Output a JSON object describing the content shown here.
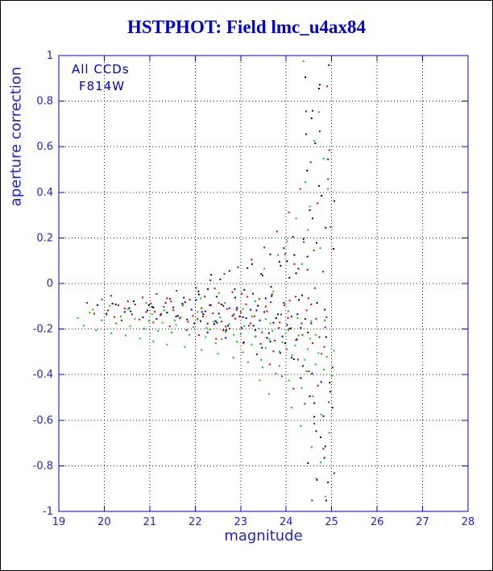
{
  "page_title": "HSTPHOT: Field lmc_u4ax84",
  "annotations": {
    "line1": "All CCDs",
    "line2": "F814W"
  },
  "colors": {
    "title": "#0000cc",
    "axis": "#0000cc",
    "grid": "#0000cc",
    "axis_text": "#2222cc"
  },
  "chart_data": {
    "type": "scatter",
    "title": "HSTPHOT: Field lmc_u4ax84",
    "xlabel": "magnitude",
    "ylabel": "aperture correction",
    "xlim": [
      19,
      28
    ],
    "ylim": [
      -1,
      1
    ],
    "x_ticks": [
      19,
      20,
      21,
      22,
      23,
      24,
      25,
      26,
      27,
      28
    ],
    "x_tick_labels": [
      "19",
      "20",
      "21",
      "22",
      "23",
      "24",
      "25",
      "26",
      "27",
      "28"
    ],
    "y_ticks": [
      1,
      0.8,
      0.6,
      0.4,
      0.2,
      0,
      -0.2,
      -0.4,
      -0.6,
      -0.8,
      -1
    ],
    "y_tick_labels": [
      "1",
      "0.8",
      "0.6",
      "0.4",
      "0.2",
      "0",
      "-0.2",
      "-0.4",
      "-0.6",
      "-0.8",
      "-1"
    ],
    "grid": "dotted",
    "legend": "none",
    "annotations": [
      "All CCDs",
      "F814W"
    ],
    "series": [
      {
        "name": "ccd-black",
        "color": "#000000",
        "points": [
          20.18,
          -0.088,
          20.58,
          -0.122,
          20.98,
          -0.095,
          21.38,
          -0.128,
          21.78,
          -0.082,
          22.18,
          -0.135,
          22.58,
          -0.092,
          22.98,
          -0.145,
          23.38,
          -0.098,
          23.78,
          -0.152,
          22.08,
          -0.048,
          22.48,
          -0.172,
          22.88,
          -0.062,
          23.28,
          -0.185,
          23.68,
          -0.055,
          24.08,
          -0.198,
          24.28,
          -0.072,
          24.48,
          -0.215,
          24.68,
          -0.085,
          24.88,
          -0.235,
          23.48,
          0.035,
          23.88,
          0.078,
          24.18,
          0.125,
          24.38,
          0.195,
          24.58,
          0.285,
          24.78,
          0.385,
          24.46,
          0.495,
          24.64,
          0.615,
          24.56,
          0.725,
          24.72,
          0.855,
          24.12,
          -0.325,
          24.32,
          -0.415,
          24.52,
          -0.495,
          24.62,
          -0.585,
          24.76,
          -0.675,
          24.84,
          -0.765,
          24.92,
          -0.872,
          24.42,
          0.905,
          24.96,
          -0.435,
          25.04,
          0.152,
          21.08,
          -0.105,
          21.58,
          -0.145,
          22.28,
          -0.025,
          23.08,
          -0.028,
          23.58,
          -0.238,
          23.98,
          -0.262,
          22.68,
          -0.205,
          21.98,
          -0.175,
          24.22,
          0.045,
          24.02,
          0.098
        ]
      },
      {
        "name": "ccd-red",
        "color": "#cc0000",
        "points": [
          19.62,
          -0.085,
          19.78,
          -0.132,
          19.95,
          -0.07,
          20.08,
          -0.118,
          20.15,
          -0.054,
          20.22,
          -0.147,
          20.31,
          -0.095,
          20.38,
          -0.162,
          20.45,
          -0.11,
          20.52,
          -0.078,
          20.61,
          -0.135,
          20.68,
          -0.092,
          20.77,
          -0.158,
          20.84,
          -0.061,
          20.92,
          -0.125,
          21.02,
          -0.088,
          21.08,
          -0.171,
          21.15,
          -0.046,
          21.23,
          -0.139,
          21.31,
          -0.102,
          21.38,
          -0.065,
          21.44,
          -0.188,
          21.52,
          -0.117,
          21.59,
          -0.032,
          21.66,
          -0.153,
          21.73,
          -0.096,
          21.81,
          -0.205,
          21.88,
          -0.071,
          21.95,
          -0.142,
          22.02,
          -0.019,
          22.08,
          -0.226,
          22.14,
          -0.108,
          22.21,
          -0.057,
          22.27,
          -0.176,
          22.33,
          0.014,
          22.39,
          -0.131,
          22.46,
          -0.243,
          22.52,
          -0.085,
          22.58,
          -0.167,
          22.64,
          0.042,
          22.7,
          -0.112,
          22.76,
          -0.198,
          22.82,
          -0.038,
          22.88,
          -0.154,
          22.94,
          0.071,
          23.0,
          -0.125,
          23.06,
          -0.262,
          23.12,
          -0.091,
          23.18,
          -0.185,
          23.24,
          0.105,
          23.3,
          -0.144,
          23.36,
          -0.311,
          23.41,
          -0.068,
          23.47,
          -0.214,
          23.52,
          0.158,
          23.58,
          -0.122,
          23.64,
          -0.355,
          23.69,
          -0.047,
          23.75,
          -0.251,
          23.8,
          0.228,
          23.86,
          -0.171,
          23.91,
          -0.408,
          23.96,
          -0.095,
          24.01,
          -0.288,
          24.06,
          0.312,
          24.11,
          -0.196,
          24.16,
          -0.462,
          24.21,
          -0.058,
          24.26,
          -0.334,
          24.31,
          0.415,
          24.36,
          -0.225,
          24.41,
          -0.528,
          24.45,
          -0.118,
          24.5,
          -0.385,
          24.54,
          0.532,
          24.58,
          -0.262,
          24.62,
          -0.615,
          24.66,
          -0.155,
          24.7,
          -0.448,
          24.74,
          0.668,
          24.78,
          -0.308,
          24.82,
          -0.725,
          24.86,
          -0.192,
          24.9,
          0.865,
          24.94,
          -0.521,
          24.98,
          0.248,
          25.02,
          -0.368,
          25.06,
          -0.832,
          21.11,
          -0.124,
          21.47,
          -0.079,
          21.84,
          -0.168,
          22.17,
          -0.145,
          22.43,
          -0.022,
          22.67,
          -0.189,
          22.91,
          -0.116,
          23.15,
          -0.058,
          23.33,
          -0.232,
          23.55,
          -0.101,
          23.72,
          -0.298,
          23.89,
          -0.136,
          24.08,
          -0.075,
          24.24,
          -0.245,
          24.39,
          0.182,
          24.55,
          -0.092,
          24.69,
          0.352,
          24.84,
          -0.278,
          24.92,
          0.458,
          24.47,
          0.06,
          24.63,
          -0.02,
          23.98,
          0.13,
          22.05,
          -0.155,
          22.35,
          -0.095,
          22.62,
          -0.205,
          22.85,
          -0.135,
          23.02,
          -0.045,
          23.22,
          -0.175,
          23.44,
          -0.265,
          23.66,
          -0.082,
          23.84,
          -0.195,
          24.04,
          -0.152,
          24.18,
          0.085,
          24.34,
          -0.175,
          24.49,
          -0.065,
          24.61,
          0.145,
          24.73,
          -0.235,
          24.81,
          0.052,
          24.89,
          -0.148,
          24.95,
          0.585,
          24.44,
          0.755,
          24.57,
          -0.952
        ]
      },
      {
        "name": "ccd-green",
        "color": "#00cc00",
        "points": [
          19.42,
          -0.152,
          19.55,
          -0.185,
          19.68,
          -0.128,
          19.82,
          -0.205,
          19.94,
          -0.162,
          20.05,
          -0.138,
          20.15,
          -0.218,
          20.26,
          -0.175,
          20.36,
          -0.145,
          20.47,
          -0.228,
          20.57,
          -0.188,
          20.67,
          -0.155,
          20.78,
          -0.242,
          20.88,
          -0.198,
          20.98,
          -0.165,
          21.08,
          -0.255,
          21.18,
          -0.208,
          21.28,
          -0.172,
          21.38,
          -0.268,
          21.48,
          -0.215,
          21.58,
          -0.182,
          21.68,
          -0.148,
          21.77,
          -0.278,
          21.87,
          -0.225,
          21.96,
          -0.192,
          22.05,
          -0.158,
          22.14,
          -0.292,
          22.23,
          -0.235,
          22.32,
          -0.202,
          22.41,
          -0.168,
          22.5,
          -0.308,
          22.58,
          -0.245,
          22.67,
          -0.212,
          22.75,
          -0.178,
          22.84,
          -0.325,
          22.92,
          -0.255,
          23.0,
          -0.222,
          23.08,
          -0.188,
          23.16,
          -0.345,
          23.24,
          -0.268,
          23.32,
          -0.232,
          23.4,
          -0.198,
          23.48,
          -0.368,
          23.55,
          -0.282,
          23.63,
          -0.245,
          23.7,
          -0.208,
          23.78,
          -0.395,
          23.85,
          -0.298,
          23.92,
          -0.258,
          23.99,
          -0.218,
          24.06,
          -0.425,
          24.13,
          -0.315,
          24.2,
          -0.272,
          24.27,
          -0.228,
          24.34,
          -0.458,
          24.41,
          -0.335,
          24.47,
          -0.288,
          24.53,
          -0.242,
          24.59,
          -0.495,
          24.65,
          -0.355,
          24.71,
          -0.305,
          24.77,
          -0.575,
          24.83,
          -0.378,
          24.89,
          -0.322,
          24.95,
          -0.655,
          25.01,
          -0.405,
          20.12,
          -0.098,
          20.52,
          -0.112,
          20.92,
          -0.085,
          21.32,
          -0.118,
          21.72,
          -0.095,
          22.12,
          -0.065,
          22.52,
          -0.042,
          22.92,
          -0.105,
          23.32,
          -0.078,
          23.72,
          -0.035,
          23.52,
          0.065,
          23.82,
          0.125,
          24.02,
          0.185,
          24.22,
          0.285,
          24.42,
          0.445,
          24.52,
          0.338,
          24.62,
          0.625,
          24.72,
          0.752,
          24.38,
          0.975,
          24.82,
          0.548,
          24.12,
          -0.545,
          24.32,
          -0.625,
          24.56,
          -0.718,
          24.76,
          -0.785,
          24.66,
          -0.855,
          24.86,
          -0.935,
          23.62,
          -0.485,
          23.42,
          -0.425,
          24.92,
          0.415,
          24.48,
          0.235,
          21.05,
          -0.135,
          21.55,
          -0.162,
          22.05,
          -0.125,
          22.55,
          -0.148,
          23.05,
          -0.112,
          23.55,
          -0.155,
          24.05,
          -0.122,
          24.55,
          -0.165,
          25.05,
          -0.295,
          19.75,
          -0.115,
          22.25,
          -0.195,
          22.45,
          -0.262,
          22.65,
          -0.085,
          22.85,
          -0.225,
          23.05,
          -0.302,
          23.25,
          -0.145,
          23.45,
          -0.335,
          23.65,
          -0.175,
          23.85,
          -0.362,
          24.05,
          -0.205,
          24.25,
          -0.152,
          24.45,
          -0.385,
          24.65,
          -0.225,
          24.85,
          -0.162,
          24.35,
          0.085,
          24.75,
          0.155
        ]
      },
      {
        "name": "ccd-blue",
        "color": "#000099",
        "points": [
          21.52,
          -0.105,
          21.62,
          -0.142,
          21.72,
          -0.088,
          21.82,
          -0.158,
          21.92,
          -0.115,
          22.02,
          -0.072,
          22.12,
          -0.165,
          22.22,
          -0.122,
          22.32,
          -0.095,
          22.42,
          -0.178,
          22.52,
          -0.132,
          22.62,
          -0.098,
          22.72,
          -0.185,
          22.82,
          -0.142,
          22.92,
          -0.108,
          23.02,
          -0.195,
          23.12,
          -0.152,
          23.22,
          -0.115,
          23.32,
          -0.205,
          23.42,
          -0.162,
          23.52,
          -0.125,
          23.62,
          -0.218,
          23.72,
          -0.172,
          23.82,
          -0.135,
          23.92,
          -0.232,
          24.02,
          -0.182,
          24.12,
          -0.145,
          24.22,
          -0.248,
          24.32,
          -0.195,
          24.42,
          -0.155,
          20.25,
          -0.092,
          20.45,
          -0.125,
          20.65,
          -0.078,
          20.85,
          -0.148,
          21.05,
          -0.102,
          21.25,
          -0.135,
          21.45,
          -0.068,
          21.15,
          -0.155,
          20.95,
          -0.118,
          21.35,
          -0.085,
          22.07,
          -0.035,
          22.27,
          -0.215,
          22.47,
          -0.058,
          22.67,
          -0.238,
          22.87,
          -0.025,
          23.07,
          -0.258,
          23.27,
          -0.045,
          23.47,
          -0.282,
          23.67,
          -0.015,
          23.87,
          -0.305,
          24.07,
          0.025,
          24.17,
          -0.332,
          24.27,
          0.065,
          24.37,
          -0.362,
          24.47,
          0.118,
          24.57,
          -0.395,
          24.67,
          0.178,
          24.77,
          -0.432,
          24.87,
          0.245,
          24.97,
          -0.475,
          24.52,
          0.322,
          24.62,
          -0.525,
          24.72,
          0.428,
          24.82,
          -0.582,
          24.92,
          0.545,
          24.44,
          0.655,
          24.58,
          0.758,
          24.66,
          -0.648,
          24.74,
          0.872,
          24.86,
          -0.715,
          23.25,
          0.085,
          23.45,
          0.042,
          23.65,
          0.128,
          23.85,
          0.095,
          22.55,
          0.018,
          22.75,
          0.055,
          23.95,
          0.155,
          24.15,
          0.205,
          22.35,
          0.038,
          23.15,
          0.068,
          24.94,
          0.958,
          24.48,
          -0.788,
          24.68,
          -0.862,
          24.88,
          -0.952,
          25.02,
          -0.545,
          25.06,
          0.362,
          19.85,
          -0.095,
          20.05,
          -0.132,
          20.55,
          -0.108,
          21.75,
          -0.062,
          22.15,
          -0.125,
          22.45,
          -0.165,
          22.75,
          -0.108,
          23.05,
          -0.148,
          23.35,
          -0.118,
          23.65,
          -0.255,
          23.95,
          -0.085,
          24.25,
          -0.135,
          24.55,
          -0.175,
          24.85,
          -0.115,
          23.55,
          -0.065,
          24.35,
          -0.052
        ]
      }
    ]
  }
}
